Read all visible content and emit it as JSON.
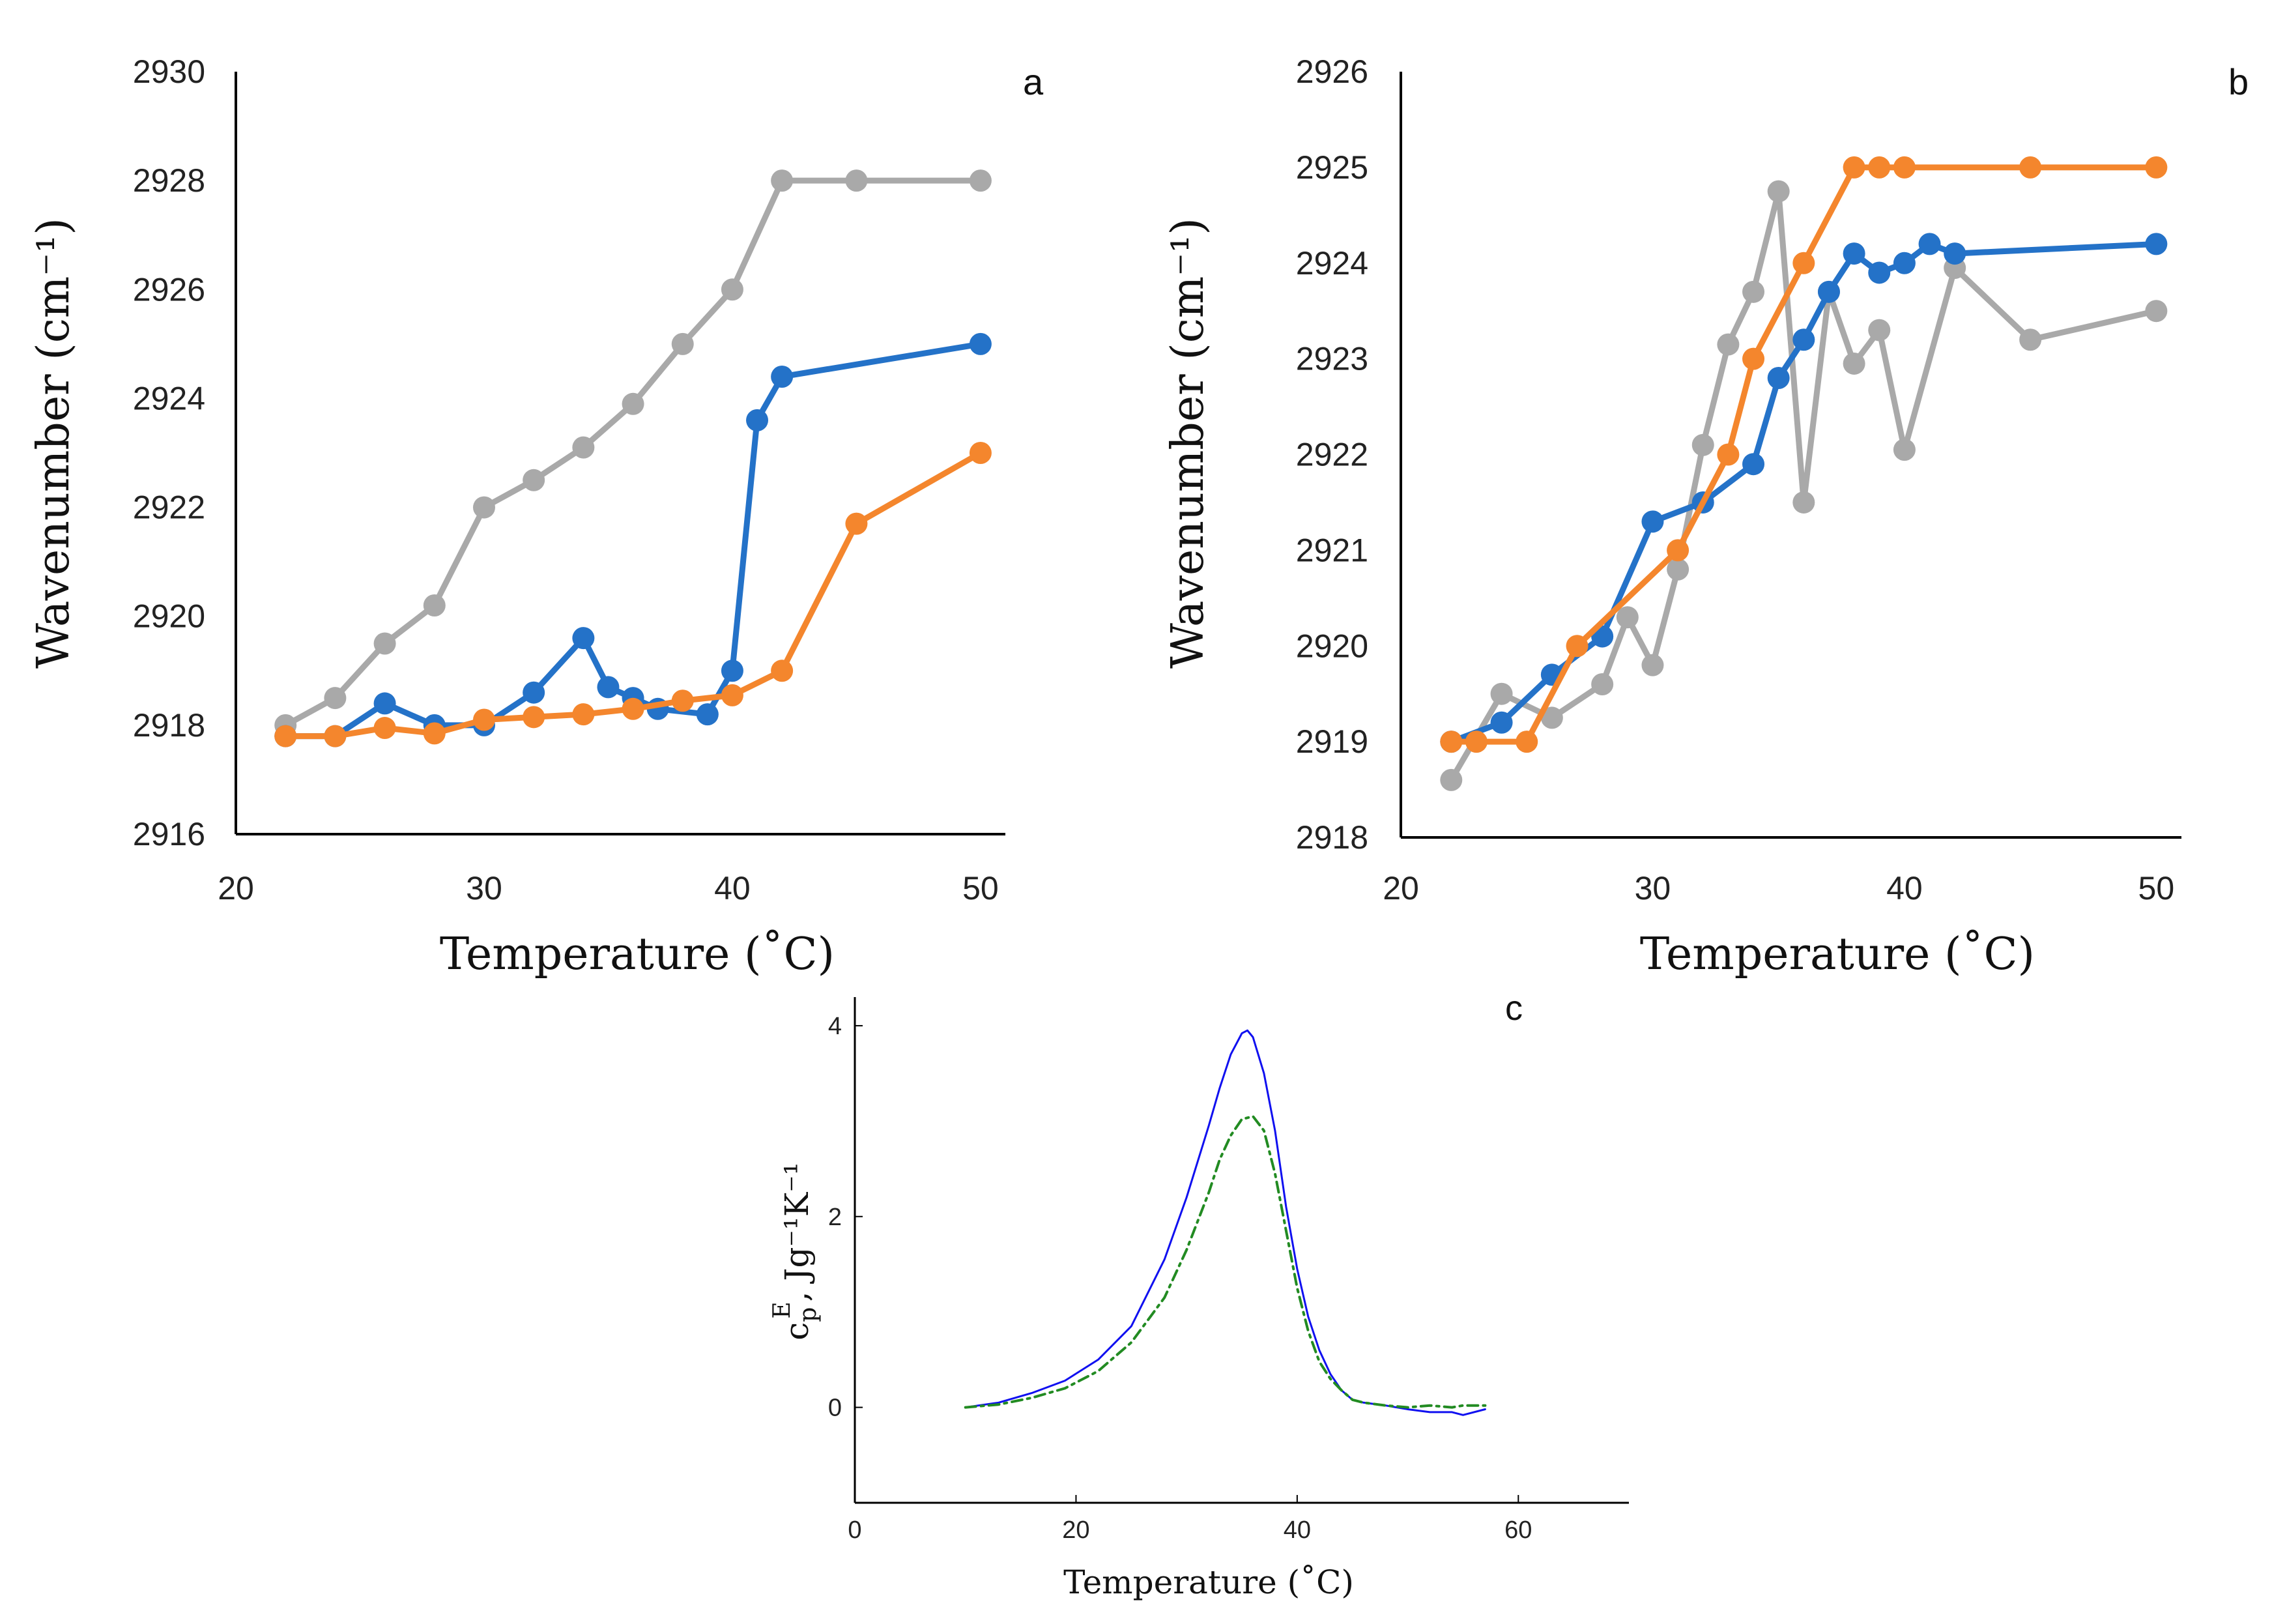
{
  "colors": {
    "gray": "#a9a9a9",
    "blue": "#2472c8",
    "orange": "#f4862d",
    "dsc_solid": "#1010f0",
    "dsc_dashed": "#228b22",
    "axis": "#000000"
  },
  "chart_data": [
    {
      "panel": "a",
      "type": "line",
      "panel_label": "a",
      "xlabel": "Temperature (˚C)",
      "ylabel": "Wavenumber (cm⁻¹)",
      "xlim": [
        20,
        51
      ],
      "ylim": [
        2916,
        2930
      ],
      "xticks": [
        20,
        30,
        40,
        50
      ],
      "yticks": [
        2916,
        2918,
        2920,
        2922,
        2924,
        2926,
        2928,
        2930
      ],
      "series": [
        {
          "name": "gray",
          "color": "gray",
          "x": [
            22,
            24,
            26,
            28,
            30,
            32,
            34,
            36,
            38,
            40,
            42,
            45,
            50
          ],
          "values": [
            2918.0,
            2918.5,
            2919.5,
            2920.2,
            2922.0,
            2922.5,
            2923.1,
            2923.9,
            2925.0,
            2926.0,
            2928.0,
            2928.0,
            2928.0
          ]
        },
        {
          "name": "blue",
          "color": "blue",
          "x": [
            22,
            24,
            26,
            28,
            30,
            32,
            34,
            35,
            36,
            37,
            39,
            40,
            41,
            42,
            50
          ],
          "values": [
            2917.8,
            2917.8,
            2918.4,
            2918.0,
            2918.0,
            2918.6,
            2919.6,
            2918.7,
            2918.5,
            2918.3,
            2918.2,
            2919.0,
            2923.6,
            2924.4,
            2925.0
          ]
        },
        {
          "name": "orange",
          "color": "orange",
          "x": [
            22,
            24,
            26,
            28,
            30,
            32,
            34,
            36,
            38,
            40,
            42,
            45,
            50
          ],
          "values": [
            2917.8,
            2917.8,
            2917.95,
            2917.85,
            2918.1,
            2918.15,
            2918.2,
            2918.3,
            2918.45,
            2918.55,
            2919.0,
            2921.7,
            2923.0
          ]
        }
      ]
    },
    {
      "panel": "b",
      "type": "line",
      "panel_label": "b",
      "xlabel": "Temperature (˚C)",
      "ylabel": "Wavenumber (cm⁻¹)",
      "xlim": [
        20,
        51
      ],
      "ylim": [
        2918,
        2926
      ],
      "xticks": [
        20,
        30,
        40,
        50
      ],
      "yticks": [
        2918,
        2919,
        2920,
        2921,
        2922,
        2923,
        2924,
        2925,
        2926
      ],
      "series": [
        {
          "name": "gray",
          "color": "gray",
          "x": [
            22,
            24,
            26,
            28,
            29,
            30,
            31,
            32,
            33,
            34,
            35,
            36,
            37,
            38,
            39,
            40,
            42,
            45,
            50
          ],
          "values": [
            2918.6,
            2919.5,
            2919.25,
            2919.6,
            2920.3,
            2919.8,
            2920.8,
            2922.1,
            2923.15,
            2923.7,
            2924.75,
            2921.5,
            2923.7,
            2922.95,
            2923.3,
            2922.05,
            2923.95,
            2923.2,
            2923.5
          ]
        },
        {
          "name": "blue",
          "color": "blue",
          "x": [
            22,
            24,
            26,
            28,
            30,
            32,
            34,
            35,
            36,
            37,
            38,
            39,
            40,
            41,
            42,
            50
          ],
          "values": [
            2919.0,
            2919.2,
            2919.7,
            2920.1,
            2921.3,
            2921.5,
            2921.9,
            2922.8,
            2923.2,
            2923.7,
            2924.1,
            2923.9,
            2924.0,
            2924.2,
            2924.1,
            2924.2
          ]
        },
        {
          "name": "orange",
          "color": "orange",
          "x": [
            22,
            23,
            25,
            27,
            31,
            33,
            34,
            36,
            38,
            39,
            40,
            45,
            50
          ],
          "values": [
            2919.0,
            2919.0,
            2919.0,
            2920.0,
            2921.0,
            2922.0,
            2923.0,
            2924.0,
            2925.0,
            2925.0,
            2925.0,
            2925.0,
            2925.0
          ]
        }
      ]
    },
    {
      "panel": "c",
      "type": "line",
      "panel_label": "c",
      "xlabel": "Temperature (˚C)",
      "ylabel_main": "c",
      "ylabel_sup": "E",
      "ylabel_sub": "p",
      "ylabel_units": ", Jg⁻¹K⁻¹",
      "xlim": [
        0,
        70
      ],
      "ylim": [
        -1,
        4.3
      ],
      "xticks": [
        0,
        20,
        40,
        60
      ],
      "yticks": [
        0,
        2,
        4
      ],
      "series": [
        {
          "name": "solid",
          "color": "dsc_solid",
          "style": "solid",
          "x": [
            10,
            13,
            16,
            19,
            22,
            25,
            28,
            30,
            32,
            33,
            34,
            35,
            35.5,
            36,
            37,
            38,
            39,
            40,
            41,
            42,
            43,
            44,
            45,
            46,
            48,
            50,
            52,
            54,
            55,
            57
          ],
          "values": [
            0,
            0.05,
            0.15,
            0.28,
            0.5,
            0.85,
            1.55,
            2.2,
            2.95,
            3.35,
            3.7,
            3.92,
            3.95,
            3.88,
            3.5,
            2.9,
            2.1,
            1.45,
            0.95,
            0.6,
            0.35,
            0.18,
            0.08,
            0.05,
            0.02,
            -0.02,
            -0.05,
            -0.05,
            -0.08,
            -0.02
          ]
        },
        {
          "name": "dashed",
          "color": "dsc_dashed",
          "style": "dashdot",
          "x": [
            10,
            13,
            16,
            19,
            22,
            25,
            28,
            30,
            32,
            33,
            34,
            35,
            36,
            37,
            38,
            39,
            40,
            41,
            42,
            43,
            44,
            45,
            46,
            48,
            50,
            52,
            54,
            55,
            57
          ],
          "values": [
            0,
            0.03,
            0.1,
            0.2,
            0.38,
            0.68,
            1.15,
            1.65,
            2.25,
            2.6,
            2.85,
            3.02,
            3.05,
            2.9,
            2.45,
            1.85,
            1.25,
            0.8,
            0.48,
            0.3,
            0.18,
            0.08,
            0.05,
            0.02,
            0.0,
            0.02,
            0.0,
            0.02,
            0.02
          ]
        }
      ]
    }
  ]
}
